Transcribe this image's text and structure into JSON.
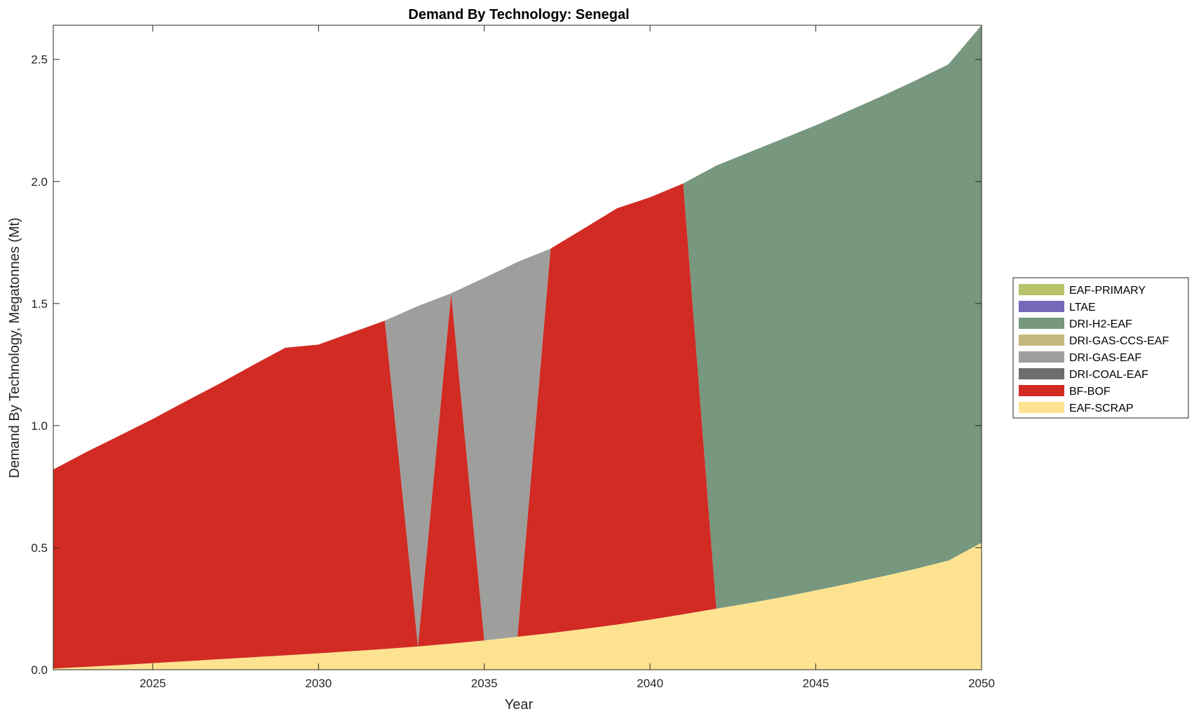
{
  "chart_data": {
    "type": "area",
    "title": "Demand By Technology: Senegal",
    "xlabel": "Year",
    "ylabel": "Demand By Technology, Megatonnes (Mt)",
    "xlim": [
      2022,
      2050
    ],
    "ylim": [
      0,
      2.64
    ],
    "xticks": [
      2025,
      2030,
      2035,
      2040,
      2045,
      2050
    ],
    "xtick_labels": [
      "2025",
      "2030",
      "2035",
      "2040",
      "2045",
      "2050"
    ],
    "yticks": [
      0,
      0.5,
      1.0,
      1.5,
      2.0,
      2.5
    ],
    "ytick_labels": [
      "0.0",
      "0.5",
      "1.0",
      "1.5",
      "2.0",
      "2.5"
    ],
    "grid": false,
    "legend_position": "right",
    "x": [
      2022,
      2023,
      2024,
      2025,
      2026,
      2027,
      2028,
      2029,
      2030,
      2031,
      2032,
      2033,
      2034,
      2035,
      2036,
      2037,
      2038,
      2039,
      2040,
      2041,
      2042,
      2043,
      2044,
      2045,
      2046,
      2047,
      2048,
      2049,
      2050
    ],
    "series": [
      {
        "name": "EAF-SCRAP",
        "color": "#fde391",
        "values": [
          0.005,
          0.012,
          0.019,
          0.027,
          0.035,
          0.043,
          0.051,
          0.059,
          0.067,
          0.076,
          0.085,
          0.095,
          0.107,
          0.12,
          0.135,
          0.15,
          0.167,
          0.185,
          0.205,
          0.227,
          0.25,
          0.273,
          0.298,
          0.325,
          0.353,
          0.382,
          0.413,
          0.447,
          0.52
        ]
      },
      {
        "name": "BF-BOF",
        "color": "#d12b23",
        "values": [
          0.815,
          0.88,
          0.94,
          1.0,
          1.065,
          1.128,
          1.195,
          1.26,
          1.265,
          1.305,
          1.345,
          0,
          1.435,
          0,
          0,
          1.575,
          1.64,
          1.705,
          1.73,
          1.765,
          0,
          0,
          0,
          0,
          0,
          0,
          0,
          0,
          0
        ]
      },
      {
        "name": "DRI-COAL-EAF",
        "color": "#6e6e6e",
        "values": [
          0,
          0,
          0,
          0,
          0,
          0,
          0,
          0,
          0,
          0,
          0,
          0,
          0,
          0,
          0,
          0,
          0,
          0,
          0,
          0,
          0,
          0,
          0,
          0,
          0,
          0,
          0,
          0,
          0
        ]
      },
      {
        "name": "DRI-GAS-EAF",
        "color": "#9e9e9c",
        "values": [
          0,
          0,
          0,
          0,
          0,
          0,
          0,
          0,
          0,
          0,
          0,
          1.395,
          0,
          1.485,
          1.535,
          0,
          0,
          0,
          0,
          0,
          0,
          0,
          0,
          0,
          0,
          0,
          0,
          0,
          0
        ]
      },
      {
        "name": "DRI-GAS-CCS-EAF",
        "color": "#c5b87c",
        "values": [
          0,
          0,
          0,
          0,
          0,
          0,
          0,
          0,
          0,
          0,
          0,
          0,
          0,
          0,
          0,
          0,
          0,
          0,
          0,
          0,
          0,
          0,
          0,
          0,
          0,
          0,
          0,
          0,
          0
        ]
      },
      {
        "name": "DRI-H2-EAF",
        "color": "#77977e",
        "values": [
          0,
          0,
          0,
          0,
          0,
          0,
          0,
          0,
          0,
          0,
          0,
          0,
          0,
          0,
          0,
          0,
          0,
          0,
          0,
          0,
          1.815,
          1.847,
          1.877,
          1.905,
          1.937,
          1.968,
          2.0,
          2.033,
          2.12
        ]
      },
      {
        "name": "LTAE",
        "color": "#7667b8",
        "values": [
          0,
          0,
          0,
          0,
          0,
          0,
          0,
          0,
          0,
          0,
          0,
          0,
          0,
          0,
          0,
          0,
          0,
          0,
          0,
          0,
          0,
          0,
          0,
          0,
          0,
          0,
          0,
          0,
          0
        ]
      },
      {
        "name": "EAF-PRIMARY",
        "color": "#b9c36a",
        "values": [
          0,
          0,
          0,
          0,
          0,
          0,
          0,
          0,
          0,
          0,
          0,
          0,
          0,
          0,
          0,
          0,
          0,
          0,
          0,
          0,
          0,
          0,
          0,
          0,
          0,
          0,
          0,
          0,
          0
        ]
      }
    ],
    "legend": [
      "EAF-PRIMARY",
      "LTAE",
      "DRI-H2-EAF",
      "DRI-GAS-CCS-EAF",
      "DRI-GAS-EAF",
      "DRI-COAL-EAF",
      "BF-BOF",
      "EAF-SCRAP"
    ]
  }
}
